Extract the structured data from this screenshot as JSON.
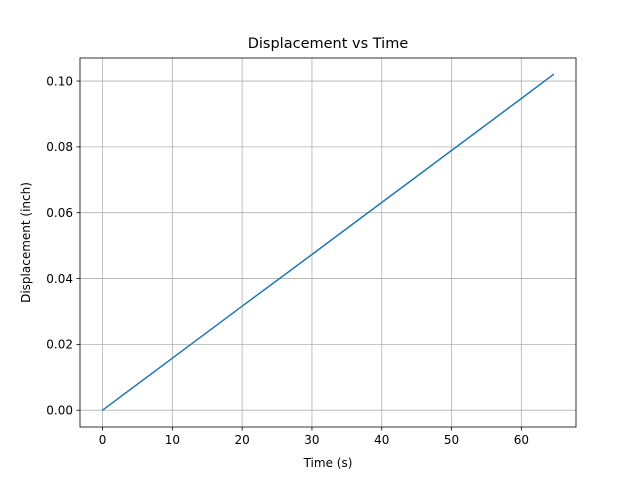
{
  "chart_data": {
    "type": "line",
    "title": "Displacement vs Time",
    "xlabel": "Time (s)",
    "ylabel": "Displacement (inch)",
    "xlim": [
      -3.23,
      67.83
    ],
    "ylim": [
      -0.0051,
      0.107
    ],
    "xticks": [
      0,
      10,
      20,
      30,
      40,
      50,
      60
    ],
    "yticks": [
      0.0,
      0.02,
      0.04,
      0.06,
      0.08,
      0.1
    ],
    "xtick_labels": [
      "0",
      "10",
      "20",
      "30",
      "40",
      "50",
      "60"
    ],
    "ytick_labels": [
      "0.00",
      "0.02",
      "0.04",
      "0.06",
      "0.08",
      "0.10"
    ],
    "grid": true,
    "series": [
      {
        "color": "#1f77b4",
        "x": [
          0,
          10,
          20,
          30,
          40,
          50,
          60,
          64.6
        ],
        "y": [
          0.0,
          0.0158,
          0.0316,
          0.0473,
          0.0631,
          0.0789,
          0.0947,
          0.102
        ]
      }
    ]
  }
}
